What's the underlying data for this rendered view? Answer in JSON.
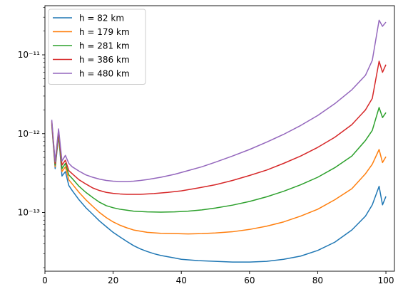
{
  "chart_data": {
    "type": "line",
    "title": "",
    "xlabel": "",
    "ylabel": "",
    "yscale": "log",
    "xlim": [
      0,
      102.5
    ],
    "ylim": [
      1.8e-14,
      4.2e-11
    ],
    "x_ticks": [
      0,
      20,
      40,
      60,
      80,
      100
    ],
    "x_tick_labels": [
      "0",
      "20",
      "40",
      "60",
      "80",
      "100"
    ],
    "y_ticks": [
      1e-13,
      1e-12,
      1e-11
    ],
    "y_tick_labels": [
      "10⁻¹³",
      "10⁻¹²",
      "10⁻¹¹"
    ],
    "grid": false,
    "legend_position": "top-left",
    "series": [
      {
        "name": "h = 82 km",
        "color": "#1f77b4",
        "points": [
          [
            2,
            1.3e-12
          ],
          [
            3,
            3.6e-13
          ],
          [
            4,
            9.5e-13
          ],
          [
            5,
            2.9e-13
          ],
          [
            6,
            3.3e-13
          ],
          [
            7,
            2.2e-13
          ],
          [
            8,
            1.9e-13
          ],
          [
            10,
            1.45e-13
          ],
          [
            12,
            1.15e-13
          ],
          [
            14,
            9.5e-14
          ],
          [
            16,
            7.8e-14
          ],
          [
            18,
            6.6e-14
          ],
          [
            20,
            5.6e-14
          ],
          [
            22,
            4.9e-14
          ],
          [
            24,
            4.3e-14
          ],
          [
            26,
            3.8e-14
          ],
          [
            28,
            3.45e-14
          ],
          [
            30,
            3.2e-14
          ],
          [
            32,
            3e-14
          ],
          [
            34,
            2.85e-14
          ],
          [
            36,
            2.75e-14
          ],
          [
            38,
            2.65e-14
          ],
          [
            40,
            2.55e-14
          ],
          [
            45,
            2.45e-14
          ],
          [
            50,
            2.4e-14
          ],
          [
            55,
            2.35e-14
          ],
          [
            60,
            2.35e-14
          ],
          [
            65,
            2.4e-14
          ],
          [
            70,
            2.55e-14
          ],
          [
            75,
            2.8e-14
          ],
          [
            80,
            3.3e-14
          ],
          [
            85,
            4.2e-14
          ],
          [
            90,
            6e-14
          ],
          [
            94,
            9e-14
          ],
          [
            96,
            1.25e-13
          ],
          [
            98,
            2.15e-13
          ],
          [
            99,
            1.25e-13
          ],
          [
            100,
            1.6e-13
          ]
        ]
      },
      {
        "name": "h = 179 km",
        "color": "#ff7f0e",
        "points": [
          [
            2,
            1.35e-12
          ],
          [
            3,
            3.8e-13
          ],
          [
            4,
            1e-12
          ],
          [
            5,
            3.3e-13
          ],
          [
            6,
            3.8e-13
          ],
          [
            7,
            2.6e-13
          ],
          [
            8,
            2.3e-13
          ],
          [
            10,
            1.8e-13
          ],
          [
            12,
            1.45e-13
          ],
          [
            14,
            1.2e-13
          ],
          [
            16,
            1e-13
          ],
          [
            18,
            8.6e-14
          ],
          [
            20,
            7.6e-14
          ],
          [
            22,
            6.9e-14
          ],
          [
            24,
            6.4e-14
          ],
          [
            26,
            6e-14
          ],
          [
            28,
            5.8e-14
          ],
          [
            30,
            5.6e-14
          ],
          [
            34,
            5.45e-14
          ],
          [
            38,
            5.4e-14
          ],
          [
            42,
            5.35e-14
          ],
          [
            46,
            5.4e-14
          ],
          [
            50,
            5.5e-14
          ],
          [
            55,
            5.7e-14
          ],
          [
            60,
            6.1e-14
          ],
          [
            65,
            6.7e-14
          ],
          [
            70,
            7.6e-14
          ],
          [
            75,
            9e-14
          ],
          [
            80,
            1.1e-13
          ],
          [
            85,
            1.45e-13
          ],
          [
            90,
            2e-13
          ],
          [
            94,
            3.1e-13
          ],
          [
            96,
            4.1e-13
          ],
          [
            98,
            6.3e-13
          ],
          [
            99,
            4.3e-13
          ],
          [
            100,
            5.1e-13
          ]
        ]
      },
      {
        "name": "h = 281 km",
        "color": "#2ca02c",
        "points": [
          [
            2,
            1.4e-12
          ],
          [
            3,
            4e-13
          ],
          [
            4,
            1.05e-12
          ],
          [
            5,
            3.6e-13
          ],
          [
            6,
            4.2e-13
          ],
          [
            7,
            3e-13
          ],
          [
            8,
            2.7e-13
          ],
          [
            10,
            2.15e-13
          ],
          [
            12,
            1.8e-13
          ],
          [
            14,
            1.55e-13
          ],
          [
            16,
            1.35e-13
          ],
          [
            18,
            1.22e-13
          ],
          [
            20,
            1.15e-13
          ],
          [
            22,
            1.1e-13
          ],
          [
            24,
            1.07e-13
          ],
          [
            26,
            1.04e-13
          ],
          [
            30,
            1.02e-13
          ],
          [
            34,
            1.01e-13
          ],
          [
            38,
            1.02e-13
          ],
          [
            42,
            1.04e-13
          ],
          [
            46,
            1.08e-13
          ],
          [
            50,
            1.14e-13
          ],
          [
            55,
            1.24e-13
          ],
          [
            60,
            1.38e-13
          ],
          [
            65,
            1.58e-13
          ],
          [
            70,
            1.86e-13
          ],
          [
            75,
            2.25e-13
          ],
          [
            80,
            2.8e-13
          ],
          [
            85,
            3.7e-13
          ],
          [
            90,
            5.2e-13
          ],
          [
            94,
            8.2e-13
          ],
          [
            96,
            1.1e-12
          ],
          [
            98,
            2.15e-12
          ],
          [
            99,
            1.6e-12
          ],
          [
            100,
            1.85e-12
          ]
        ]
      },
      {
        "name": "h = 386 km",
        "color": "#d62728",
        "points": [
          [
            2,
            1.45e-12
          ],
          [
            3,
            4.2e-13
          ],
          [
            4,
            1.1e-12
          ],
          [
            5,
            4e-13
          ],
          [
            6,
            4.6e-13
          ],
          [
            7,
            3.4e-13
          ],
          [
            8,
            3.1e-13
          ],
          [
            10,
            2.6e-13
          ],
          [
            12,
            2.3e-13
          ],
          [
            14,
            2.05e-13
          ],
          [
            16,
            1.9e-13
          ],
          [
            18,
            1.8e-13
          ],
          [
            20,
            1.75e-13
          ],
          [
            22,
            1.72e-13
          ],
          [
            24,
            1.7e-13
          ],
          [
            28,
            1.7e-13
          ],
          [
            32,
            1.74e-13
          ],
          [
            36,
            1.8e-13
          ],
          [
            40,
            1.88e-13
          ],
          [
            45,
            2.05e-13
          ],
          [
            50,
            2.25e-13
          ],
          [
            55,
            2.55e-13
          ],
          [
            60,
            2.95e-13
          ],
          [
            65,
            3.45e-13
          ],
          [
            70,
            4.2e-13
          ],
          [
            75,
            5.2e-13
          ],
          [
            80,
            6.7e-13
          ],
          [
            85,
            9e-13
          ],
          [
            90,
            1.3e-12
          ],
          [
            94,
            2e-12
          ],
          [
            96,
            2.8e-12
          ],
          [
            98,
            8.3e-12
          ],
          [
            99,
            6e-12
          ],
          [
            100,
            7.5e-12
          ]
        ]
      },
      {
        "name": "h = 480 km",
        "color": "#9467bd",
        "points": [
          [
            2,
            1.5e-12
          ],
          [
            3,
            4.4e-13
          ],
          [
            4,
            1.15e-12
          ],
          [
            5,
            4.5e-13
          ],
          [
            6,
            5.3e-13
          ],
          [
            7,
            4.2e-13
          ],
          [
            8,
            3.8e-13
          ],
          [
            10,
            3.35e-13
          ],
          [
            12,
            3e-13
          ],
          [
            14,
            2.8e-13
          ],
          [
            16,
            2.65e-13
          ],
          [
            18,
            2.55e-13
          ],
          [
            20,
            2.5e-13
          ],
          [
            22,
            2.47e-13
          ],
          [
            24,
            2.47e-13
          ],
          [
            26,
            2.5e-13
          ],
          [
            28,
            2.55e-13
          ],
          [
            30,
            2.62e-13
          ],
          [
            34,
            2.8e-13
          ],
          [
            38,
            3.05e-13
          ],
          [
            42,
            3.4e-13
          ],
          [
            46,
            3.8e-13
          ],
          [
            50,
            4.35e-13
          ],
          [
            55,
            5.2e-13
          ],
          [
            60,
            6.3e-13
          ],
          [
            65,
            7.8e-13
          ],
          [
            70,
            9.8e-13
          ],
          [
            75,
            1.27e-12
          ],
          [
            80,
            1.7e-12
          ],
          [
            85,
            2.4e-12
          ],
          [
            90,
            3.6e-12
          ],
          [
            94,
            5.5e-12
          ],
          [
            96,
            8.5e-12
          ],
          [
            98,
            2.75e-11
          ],
          [
            99,
            2.3e-11
          ],
          [
            100,
            2.6e-11
          ]
        ]
      }
    ]
  }
}
